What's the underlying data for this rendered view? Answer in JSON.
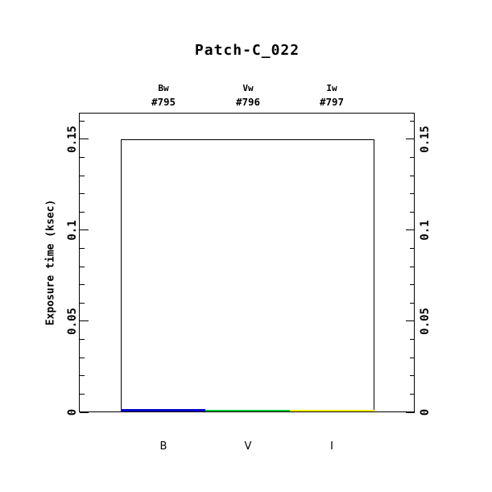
{
  "page": {
    "background": "#ffffff",
    "ink_color": "#000000"
  },
  "chart_data": {
    "type": "bar",
    "title": "Patch-C_022",
    "ylabel": "Exposure time (ksec)",
    "ylim": [
      0,
      0.1646
    ],
    "yticks": [
      0,
      0.05,
      0.1,
      0.15
    ],
    "ytick_labels": [
      "0",
      "0.05",
      "0.1",
      "0.15"
    ],
    "minor_tick_step": 0.01,
    "grid": "off",
    "axis_sides": [
      "left",
      "right"
    ],
    "categories": [
      "B",
      "V",
      "I"
    ],
    "outline_box_value": 0.15,
    "filters": [
      {
        "band": "Bw",
        "id": "#795",
        "axis_label": "B",
        "value": 0.0013,
        "color": "#0000CD"
      },
      {
        "band": "Vw",
        "id": "#796",
        "axis_label": "V",
        "value": 0.001,
        "color": "#00C832"
      },
      {
        "band": "Iw",
        "id": "#797",
        "axis_label": "I",
        "value": 0.001,
        "color": "#FFFF00"
      }
    ]
  }
}
